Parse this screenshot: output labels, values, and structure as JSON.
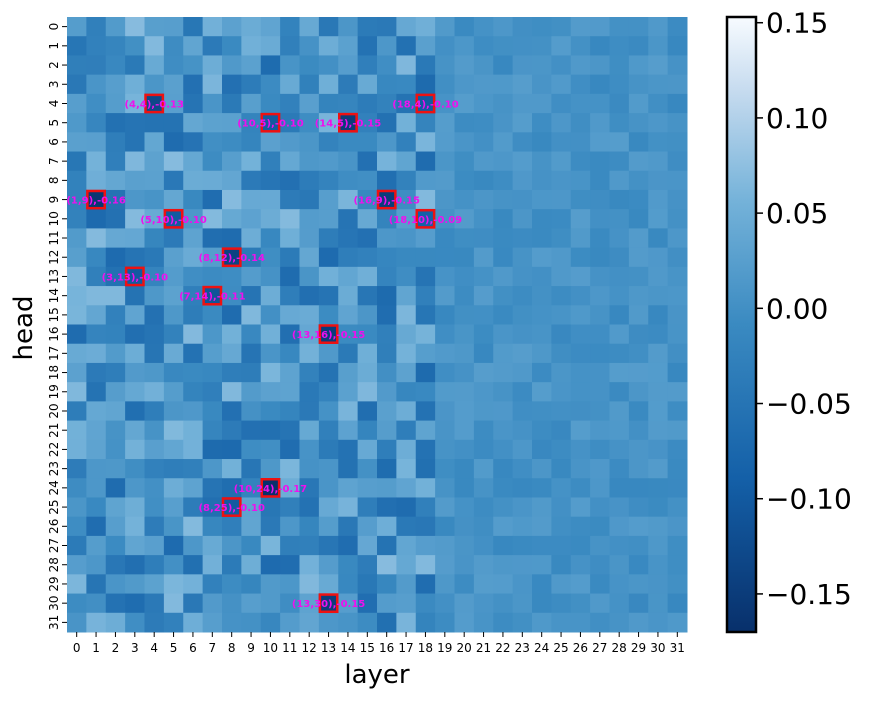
{
  "chart_data": {
    "type": "heatmap",
    "title": "",
    "xlabel": "layer",
    "ylabel": "head",
    "x": [
      0,
      1,
      2,
      3,
      4,
      5,
      6,
      7,
      8,
      9,
      10,
      11,
      12,
      13,
      14,
      15,
      16,
      17,
      18,
      19,
      20,
      21,
      22,
      23,
      24,
      25,
      26,
      27,
      28,
      29,
      30,
      31
    ],
    "y": [
      0,
      1,
      2,
      3,
      4,
      5,
      6,
      7,
      8,
      9,
      10,
      11,
      12,
      13,
      14,
      15,
      16,
      17,
      18,
      19,
      20,
      21,
      22,
      23,
      24,
      25,
      26,
      27,
      28,
      29,
      30,
      31
    ],
    "colormap": "Blues_r",
    "vmin": -0.17,
    "vmax": 0.153,
    "colorbar": {
      "ticks": [
        0.15,
        0.1,
        0.05,
        0.0,
        -0.05,
        -0.1,
        -0.15
      ],
      "tick_labels": [
        "0.15",
        "0.10",
        "0.05",
        "0.00",
        "−0.05",
        "−0.10",
        "−0.15"
      ]
    },
    "highlighted_cells": [
      {
        "layer": 4,
        "head": 4,
        "value": -0.13,
        "label": "(4,4),-0.13"
      },
      {
        "layer": 18,
        "head": 4,
        "value": -0.1,
        "label": "(18,4),-0.10"
      },
      {
        "layer": 10,
        "head": 5,
        "value": -0.1,
        "label": "(10,5),-0.10"
      },
      {
        "layer": 14,
        "head": 5,
        "value": -0.15,
        "label": "(14,5),-0.15"
      },
      {
        "layer": 1,
        "head": 9,
        "value": -0.16,
        "label": "(1,9),-0.16"
      },
      {
        "layer": 16,
        "head": 9,
        "value": -0.15,
        "label": "(16,9),-0.15"
      },
      {
        "layer": 5,
        "head": 10,
        "value": -0.1,
        "label": "(5,10),-0.10"
      },
      {
        "layer": 18,
        "head": 10,
        "value": -0.09,
        "label": "(18,10),-0.09"
      },
      {
        "layer": 8,
        "head": 12,
        "value": -0.14,
        "label": "(8,12),-0.14"
      },
      {
        "layer": 3,
        "head": 13,
        "value": -0.1,
        "label": "(3,13),-0.10"
      },
      {
        "layer": 7,
        "head": 14,
        "value": -0.11,
        "label": "(7,14),-0.11"
      },
      {
        "layer": 13,
        "head": 16,
        "value": -0.15,
        "label": "(13,16),-0.15"
      },
      {
        "layer": 10,
        "head": 24,
        "value": -0.17,
        "label": "(10,24),-0.17"
      },
      {
        "layer": 8,
        "head": 25,
        "value": -0.1,
        "label": "(8,25),-0.10"
      },
      {
        "layer": 13,
        "head": 30,
        "value": -0.15,
        "label": "(13,30),-0.15"
      }
    ],
    "colors": {
      "highlight_box": "#ee1111",
      "annotation_text": "#ee11ee"
    },
    "seed": 12345
  }
}
